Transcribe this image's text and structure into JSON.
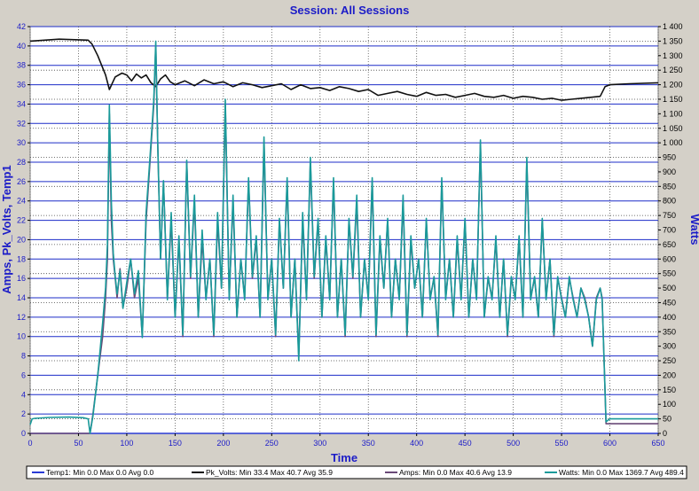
{
  "chart_data": {
    "type": "line",
    "title": "Session: All Sessions",
    "xlabel": "Time",
    "ylabel": "Amps, Pk_Volts, Temp1",
    "y2label": "Watts",
    "xlim": [
      0,
      650
    ],
    "ylim": [
      0,
      42
    ],
    "y2lim": [
      0,
      1400
    ],
    "x_ticks": [
      0,
      50,
      100,
      150,
      200,
      250,
      300,
      350,
      400,
      450,
      500,
      550,
      600,
      650
    ],
    "y_ticks": [
      0,
      2,
      4,
      6,
      8,
      10,
      12,
      14,
      16,
      18,
      20,
      22,
      24,
      26,
      28,
      30,
      32,
      34,
      36,
      38,
      40,
      42
    ],
    "y2_ticks": [
      {
        "v": 0,
        "label": "0"
      },
      {
        "v": 50,
        "label": "50"
      },
      {
        "v": 100,
        "label": "100"
      },
      {
        "v": 150,
        "label": "150"
      },
      {
        "v": 200,
        "label": "200"
      },
      {
        "v": 250,
        "label": "250"
      },
      {
        "v": 300,
        "label": "300"
      },
      {
        "v": 350,
        "label": "350"
      },
      {
        "v": 400,
        "label": "400"
      },
      {
        "v": 450,
        "label": "450"
      },
      {
        "v": 500,
        "label": "500"
      },
      {
        "v": 550,
        "label": "550"
      },
      {
        "v": 600,
        "label": "600"
      },
      {
        "v": 650,
        "label": "650"
      },
      {
        "v": 700,
        "label": "700"
      },
      {
        "v": 750,
        "label": "750"
      },
      {
        "v": 800,
        "label": "800"
      },
      {
        "v": 850,
        "label": "850"
      },
      {
        "v": 900,
        "label": "900"
      },
      {
        "v": 950,
        "label": "950"
      },
      {
        "v": 1000,
        "label": "1 000"
      },
      {
        "v": 1050,
        "label": "1 050"
      },
      {
        "v": 1100,
        "label": "1 100"
      },
      {
        "v": 1150,
        "label": "1 150"
      },
      {
        "v": 1200,
        "label": "1 200"
      },
      {
        "v": 1250,
        "label": "1 250"
      },
      {
        "v": 1300,
        "label": "1 300"
      },
      {
        "v": 1350,
        "label": "1 350"
      },
      {
        "v": 1400,
        "label": "1 400"
      }
    ],
    "grid": true,
    "legend_position": "bottom",
    "series": [
      {
        "name": "Temp1",
        "legend": "Temp1:  Min 0.0 Max 0.0 Avg 0.0",
        "color": "#2a3bd6",
        "axis": "left",
        "x": [
          0,
          650
        ],
        "y": [
          0,
          0
        ]
      },
      {
        "name": "Pk_Volts",
        "legend": "Pk_Volts:  Min 33.4 Max 40.7 Avg 35.9",
        "color": "#111111",
        "axis": "left",
        "x": [
          0,
          30,
          60,
          64,
          70,
          78,
          82,
          88,
          95,
          100,
          105,
          110,
          115,
          120,
          125,
          130,
          135,
          140,
          145,
          150,
          160,
          170,
          180,
          190,
          200,
          210,
          220,
          230,
          240,
          250,
          260,
          270,
          280,
          290,
          300,
          310,
          320,
          330,
          340,
          350,
          360,
          370,
          380,
          390,
          400,
          410,
          420,
          430,
          440,
          450,
          460,
          470,
          480,
          490,
          500,
          510,
          520,
          530,
          540,
          550,
          560,
          570,
          580,
          590,
          595,
          600,
          620,
          650
        ],
        "y": [
          40.5,
          40.7,
          40.6,
          40.2,
          39.0,
          37.0,
          35.5,
          36.8,
          37.2,
          37.0,
          36.4,
          37.1,
          36.7,
          37.0,
          36.2,
          35.8,
          36.6,
          37.0,
          36.3,
          36.0,
          36.4,
          35.9,
          36.5,
          36.1,
          36.3,
          35.8,
          36.2,
          36.0,
          35.7,
          35.9,
          36.1,
          35.5,
          36.0,
          35.6,
          35.7,
          35.4,
          35.8,
          35.6,
          35.3,
          35.5,
          34.9,
          35.1,
          35.3,
          35.0,
          34.8,
          35.2,
          34.9,
          35.0,
          34.7,
          34.9,
          35.1,
          34.8,
          34.7,
          34.9,
          34.6,
          34.8,
          34.7,
          34.5,
          34.6,
          34.4,
          34.5,
          34.6,
          34.7,
          34.8,
          35.8,
          36.0,
          36.1,
          36.2
        ]
      },
      {
        "name": "Amps",
        "legend": "Amps:  Min 0.0 Max 40.6 Avg 13.9",
        "color": "#6a4a78",
        "axis": "left",
        "x": [
          0,
          60,
          62,
          65,
          70,
          75,
          78,
          80,
          82,
          84,
          86,
          88,
          90,
          93,
          96,
          100,
          104,
          108,
          112,
          116,
          120,
          124,
          128,
          130,
          132,
          135,
          138,
          142,
          146,
          150,
          154,
          158,
          162,
          166,
          170,
          174,
          178,
          182,
          186,
          190,
          194,
          198,
          202,
          206,
          210,
          214,
          218,
          222,
          226,
          230,
          234,
          238,
          242,
          246,
          250,
          254,
          258,
          262,
          266,
          270,
          274,
          278,
          282,
          286,
          290,
          294,
          298,
          302,
          306,
          310,
          314,
          318,
          322,
          326,
          330,
          334,
          338,
          342,
          346,
          350,
          354,
          358,
          362,
          366,
          370,
          374,
          378,
          382,
          386,
          390,
          394,
          398,
          402,
          406,
          410,
          414,
          418,
          422,
          426,
          430,
          434,
          438,
          442,
          446,
          450,
          454,
          458,
          462,
          466,
          470,
          474,
          478,
          482,
          486,
          490,
          494,
          498,
          502,
          506,
          510,
          514,
          518,
          522,
          526,
          530,
          534,
          538,
          542,
          546,
          550,
          554,
          558,
          562,
          566,
          570,
          574,
          578,
          582,
          586,
          590,
          592,
          596,
          600,
          620,
          650
        ],
        "y": [
          0,
          0,
          0,
          2,
          6,
          10,
          14,
          18,
          33,
          22,
          18,
          16,
          14,
          17,
          13,
          15,
          18,
          14,
          16,
          10,
          22,
          28,
          34,
          40,
          30,
          18,
          26,
          14,
          22,
          12,
          20,
          10,
          28,
          16,
          24,
          12,
          20,
          14,
          18,
          10,
          22,
          15,
          34,
          14,
          24,
          12,
          18,
          14,
          26,
          16,
          20,
          12,
          30,
          14,
          18,
          10,
          22,
          15,
          26,
          12,
          18,
          8,
          22,
          14,
          28,
          16,
          22,
          12,
          20,
          14,
          26,
          12,
          18,
          10,
          22,
          16,
          24,
          12,
          18,
          14,
          26,
          10,
          20,
          15,
          22,
          12,
          18,
          14,
          24,
          10,
          20,
          15,
          18,
          12,
          22,
          14,
          16,
          10,
          26,
          14,
          18,
          12,
          20,
          14,
          22,
          12,
          18,
          14,
          30,
          12,
          16,
          14,
          20,
          12,
          18,
          10,
          16,
          14,
          20,
          12,
          28,
          14,
          16,
          12,
          22,
          14,
          18,
          10,
          16,
          14,
          12,
          16,
          14,
          12,
          15,
          14,
          12,
          9,
          14,
          15,
          14,
          1,
          1,
          1,
          1
        ]
      },
      {
        "name": "Watts",
        "legend": "Watts:  Min 0.0 Max 1369.7 Avg 489.4",
        "color": "#1a9a9a",
        "axis": "right",
        "x": [
          0,
          2,
          5,
          20,
          40,
          55,
          60,
          62,
          65,
          70,
          75,
          78,
          80,
          82,
          84,
          86,
          88,
          90,
          93,
          96,
          100,
          104,
          108,
          112,
          116,
          120,
          124,
          128,
          130,
          132,
          135,
          138,
          142,
          146,
          150,
          154,
          158,
          162,
          166,
          170,
          174,
          178,
          182,
          186,
          190,
          194,
          198,
          202,
          206,
          210,
          214,
          218,
          222,
          226,
          230,
          234,
          238,
          242,
          246,
          250,
          254,
          258,
          262,
          266,
          270,
          274,
          278,
          282,
          286,
          290,
          294,
          298,
          302,
          306,
          310,
          314,
          318,
          322,
          326,
          330,
          334,
          338,
          342,
          346,
          350,
          354,
          358,
          362,
          366,
          370,
          374,
          378,
          382,
          386,
          390,
          394,
          398,
          402,
          406,
          410,
          414,
          418,
          422,
          426,
          430,
          434,
          438,
          442,
          446,
          450,
          454,
          458,
          462,
          466,
          470,
          474,
          478,
          482,
          486,
          490,
          494,
          498,
          502,
          506,
          510,
          514,
          518,
          522,
          526,
          530,
          534,
          538,
          542,
          546,
          550,
          554,
          558,
          562,
          566,
          570,
          574,
          578,
          582,
          586,
          590,
          592,
          596,
          600,
          620,
          650
        ],
        "y": [
          30,
          50,
          52,
          55,
          56,
          54,
          50,
          0,
          60,
          200,
          380,
          500,
          650,
          1130,
          800,
          620,
          540,
          480,
          560,
          430,
          520,
          600,
          480,
          560,
          330,
          760,
          950,
          1150,
          1350,
          1000,
          600,
          870,
          460,
          760,
          400,
          680,
          340,
          940,
          540,
          820,
          400,
          700,
          460,
          600,
          340,
          760,
          500,
          1150,
          460,
          820,
          400,
          600,
          460,
          880,
          540,
          680,
          400,
          1020,
          460,
          600,
          340,
          740,
          500,
          880,
          400,
          600,
          250,
          760,
          460,
          950,
          540,
          740,
          400,
          680,
          460,
          880,
          400,
          600,
          340,
          740,
          540,
          820,
          400,
          600,
          460,
          880,
          340,
          680,
          500,
          740,
          400,
          600,
          460,
          820,
          340,
          680,
          500,
          600,
          400,
          740,
          460,
          540,
          340,
          880,
          460,
          600,
          400,
          680,
          460,
          740,
          400,
          600,
          460,
          1010,
          400,
          540,
          460,
          680,
          400,
          600,
          340,
          540,
          460,
          680,
          400,
          950,
          460,
          540,
          400,
          740,
          460,
          600,
          340,
          540,
          460,
          400,
          540,
          460,
          400,
          500,
          460,
          400,
          300,
          460,
          500,
          460,
          40,
          50,
          50,
          50
        ]
      }
    ]
  }
}
